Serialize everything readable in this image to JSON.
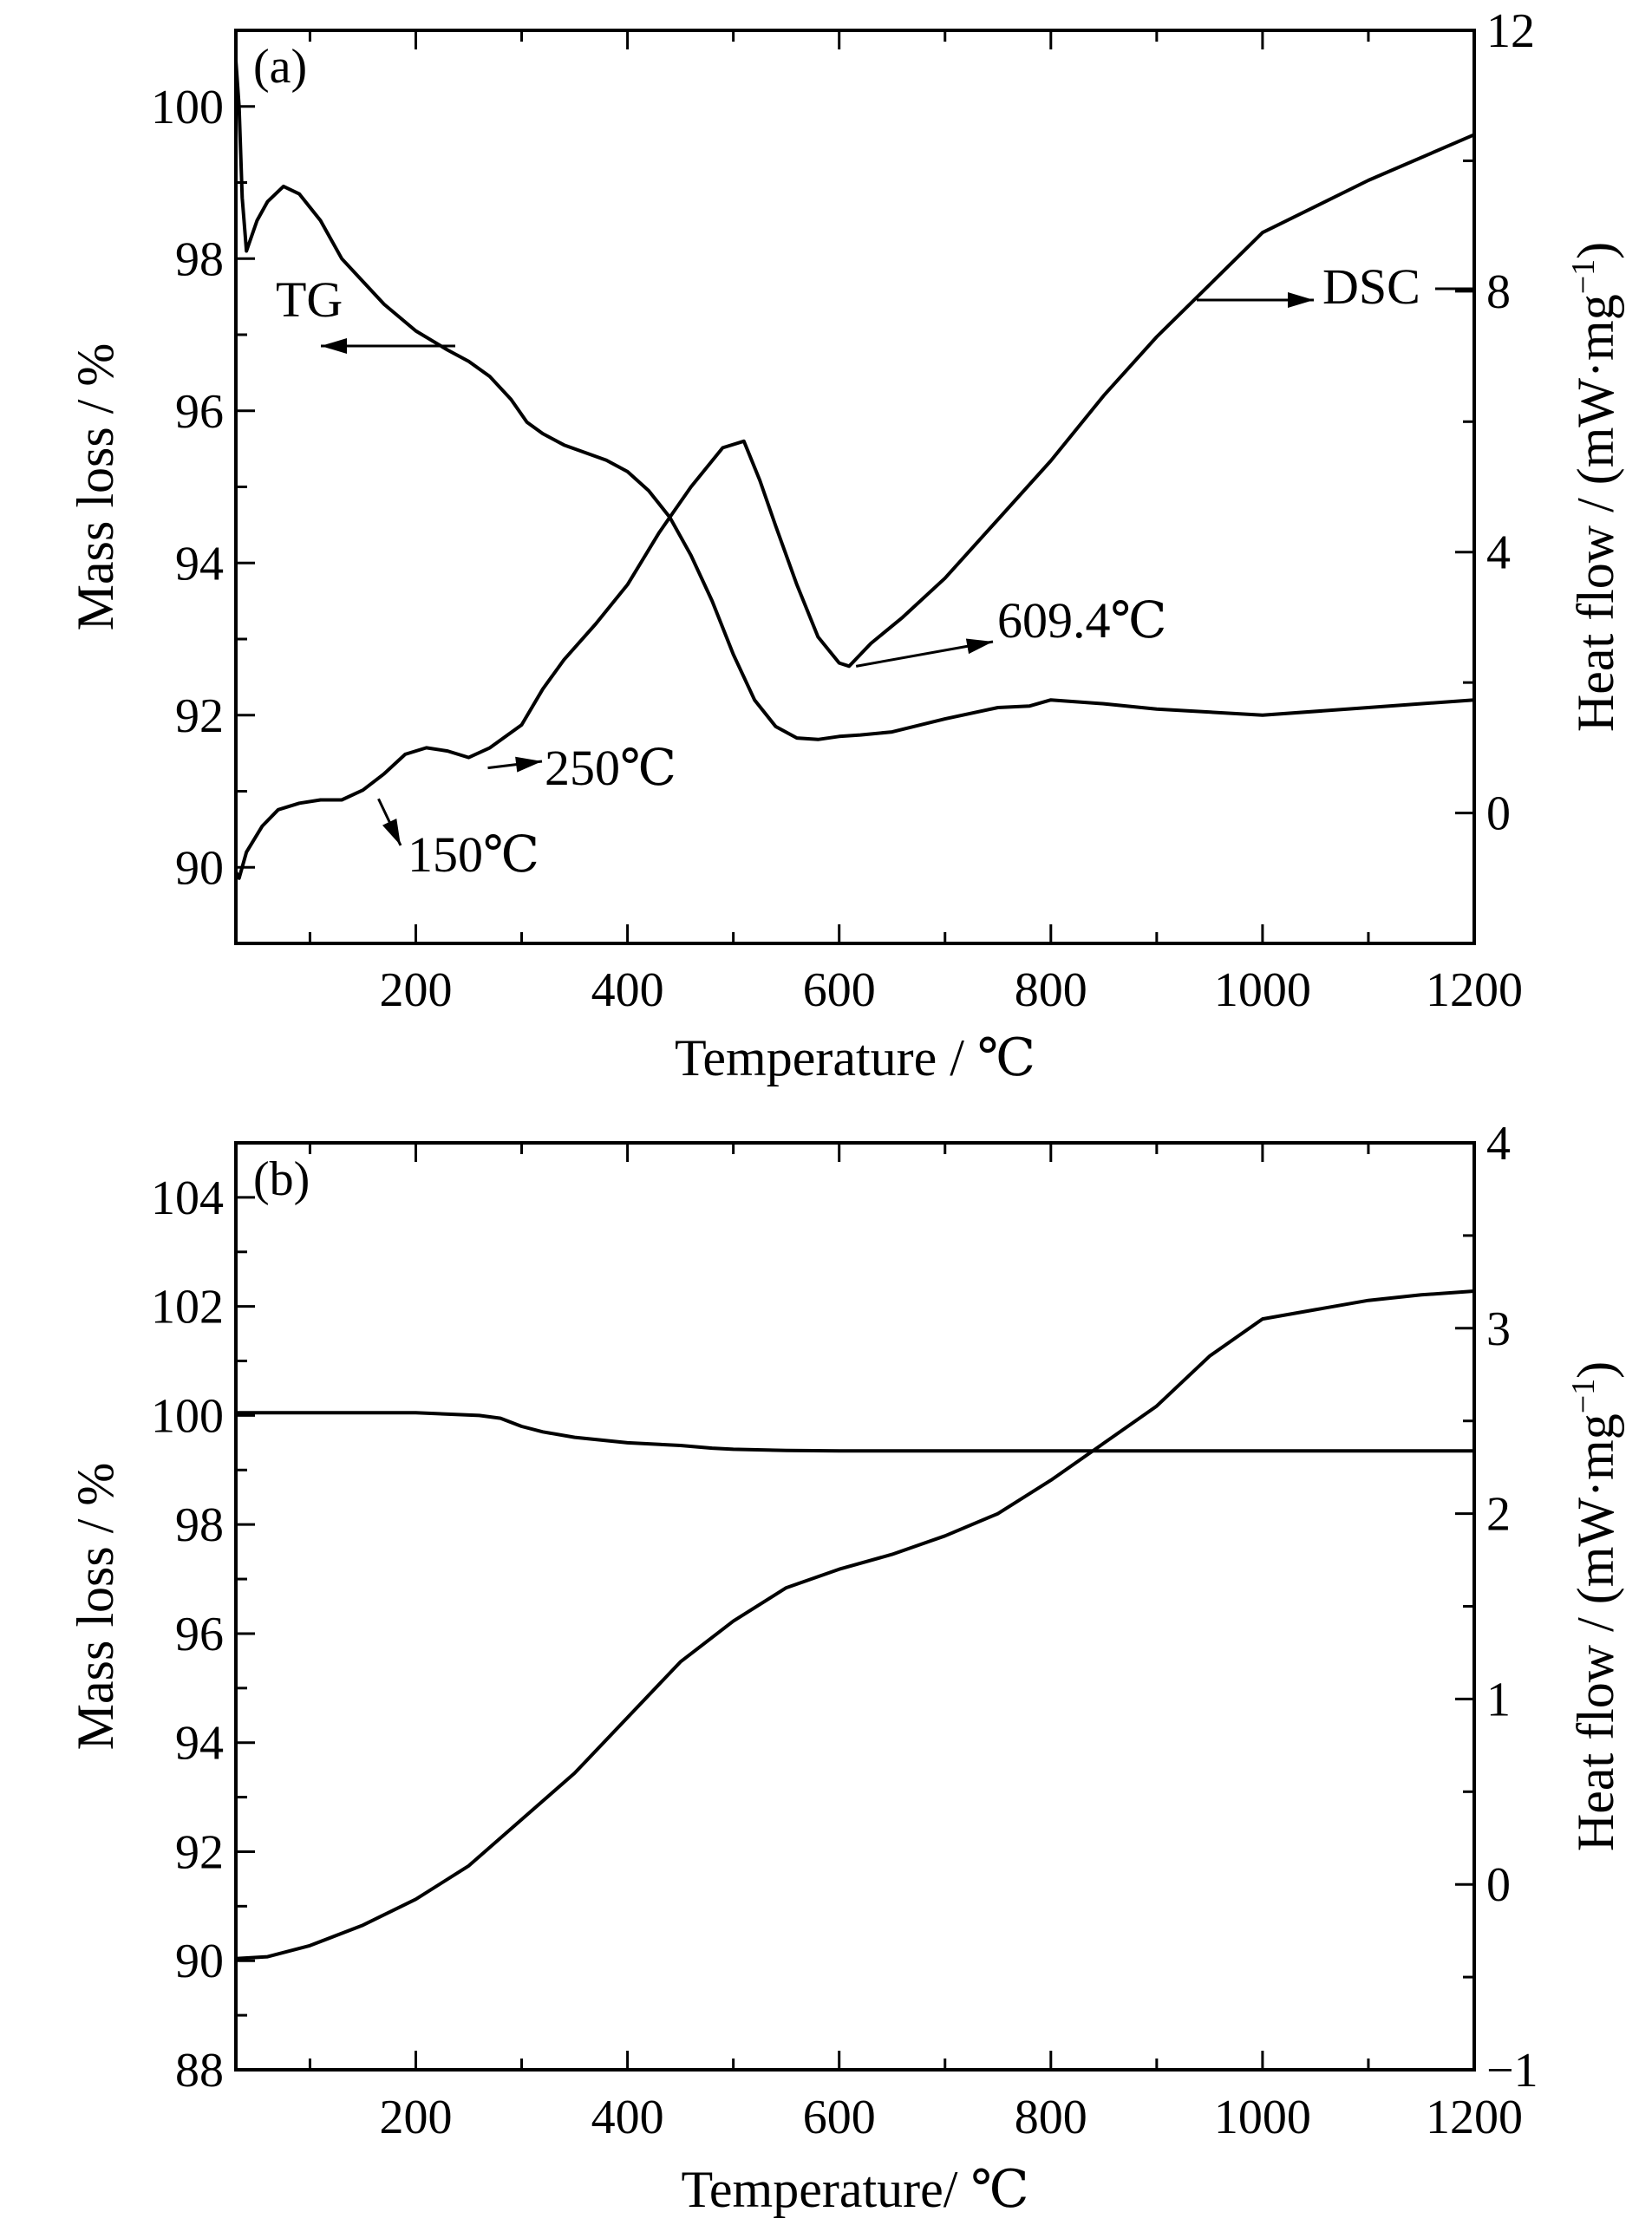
{
  "chart_data": [
    {
      "type": "line",
      "panel_label": "(a)",
      "xlabel": "Temperature / ℃",
      "ylabel_left": "Mass loss / %",
      "ylabel_right": "Heat flow / (mW·mg",
      "ylabel_right_sup": "−1",
      "ylabel_right_end": ")",
      "xlim": [
        30,
        1200
      ],
      "ylim_left": [
        89,
        101
      ],
      "ylim_right": [
        -2,
        12
      ],
      "xticks": [
        200,
        400,
        600,
        800,
        1000,
        1200
      ],
      "xticks_minor": [
        100,
        300,
        500,
        700,
        900,
        1100
      ],
      "yticks_left": [
        90,
        92,
        94,
        96,
        98,
        100
      ],
      "yticks_left_minor": [
        91,
        93,
        95,
        97,
        99
      ],
      "yticks_right": [
        0,
        4,
        8,
        12
      ],
      "yticks_right_minor": [
        2,
        6,
        10
      ],
      "series": [
        {
          "name": "TG",
          "axis": "left",
          "x": [
            30,
            33,
            36,
            40,
            50,
            60,
            75,
            90,
            110,
            130,
            150,
            170,
            200,
            230,
            250,
            270,
            290,
            305,
            320,
            340,
            360,
            380,
            400,
            420,
            440,
            460,
            480,
            500,
            520,
            540,
            560,
            580,
            600,
            620,
            650,
            700,
            750,
            780,
            800,
            850,
            900,
            1000,
            1100,
            1200
          ],
          "y": [
            100.6,
            100.0,
            98.8,
            98.1,
            98.5,
            98.75,
            98.95,
            98.85,
            98.5,
            98.0,
            97.7,
            97.4,
            97.05,
            96.8,
            96.65,
            96.45,
            96.15,
            95.85,
            95.7,
            95.55,
            95.45,
            95.35,
            95.2,
            94.95,
            94.6,
            94.1,
            93.5,
            92.8,
            92.2,
            91.85,
            91.7,
            91.68,
            91.72,
            91.74,
            91.78,
            91.95,
            92.1,
            92.12,
            92.2,
            92.15,
            92.08,
            92.0,
            92.1,
            92.2
          ]
        },
        {
          "name": "DSC",
          "axis": "right",
          "x": [
            30,
            33,
            40,
            55,
            70,
            90,
            110,
            130,
            150,
            170,
            190,
            210,
            230,
            250,
            270,
            300,
            320,
            340,
            370,
            400,
            430,
            460,
            490,
            510,
            525,
            540,
            560,
            580,
            600,
            609.4,
            630,
            660,
            700,
            750,
            800,
            850,
            900,
            950,
            1000,
            1100,
            1200
          ],
          "y": [
            -0.9,
            -1.0,
            -0.6,
            -0.2,
            0.05,
            0.15,
            0.2,
            0.2,
            0.35,
            0.6,
            0.9,
            1.0,
            0.95,
            0.85,
            1.0,
            1.35,
            1.9,
            2.35,
            2.9,
            3.5,
            4.3,
            5.0,
            5.6,
            5.7,
            5.1,
            4.4,
            3.5,
            2.7,
            2.3,
            2.25,
            2.6,
            3.0,
            3.6,
            4.5,
            5.4,
            6.4,
            7.3,
            8.1,
            8.9,
            9.7,
            10.4
          ]
        }
      ],
      "annotations": [
        {
          "text": "TG",
          "points_to": "left"
        },
        {
          "text": "DSC",
          "points_to": "right"
        },
        {
          "text": "150℃",
          "at": [
            150,
            0.35
          ]
        },
        {
          "text": "250℃",
          "at": [
            250,
            0.85
          ]
        },
        {
          "text": "609.4℃",
          "at": [
            609.4,
            2.25
          ]
        }
      ]
    },
    {
      "type": "line",
      "panel_label": "(b)",
      "xlabel": "Temperature/ ℃",
      "ylabel_left": "Mass loss / %",
      "ylabel_right": "Heat flow / (mW·mg",
      "ylabel_right_sup": "−1",
      "ylabel_right_end": ")",
      "xlim": [
        30,
        1200
      ],
      "ylim_left": [
        88,
        105
      ],
      "ylim_right": [
        -1,
        4
      ],
      "xticks": [
        200,
        400,
        600,
        800,
        1000,
        1200
      ],
      "xticks_minor": [
        100,
        300,
        500,
        700,
        900,
        1100
      ],
      "yticks_left": [
        88,
        90,
        92,
        94,
        96,
        98,
        100,
        102,
        104
      ],
      "yticks_left_minor": [
        89,
        91,
        93,
        95,
        97,
        99,
        101,
        103
      ],
      "yticks_right": [
        -1,
        0,
        1,
        2,
        3,
        4
      ],
      "yticks_right_minor": [
        -0.5,
        0.5,
        1.5,
        2.5,
        3.5
      ],
      "series": [
        {
          "name": "",
          "axis": "left",
          "x": [
            30,
            100,
            200,
            260,
            280,
            300,
            320,
            350,
            400,
            450,
            480,
            500,
            550,
            600,
            700,
            800,
            900,
            1000,
            1100,
            1200
          ],
          "y": [
            100.05,
            100.05,
            100.05,
            100.0,
            99.95,
            99.8,
            99.7,
            99.6,
            99.5,
            99.45,
            99.4,
            99.38,
            99.36,
            99.35,
            99.35,
            99.35,
            99.35,
            99.35,
            99.35,
            99.35
          ]
        },
        {
          "name": "",
          "axis": "right",
          "x": [
            30,
            60,
            100,
            150,
            200,
            250,
            300,
            350,
            400,
            450,
            500,
            550,
            600,
            650,
            700,
            750,
            800,
            850,
            900,
            950,
            1000,
            1050,
            1100,
            1150,
            1200
          ],
          "y": [
            -0.4,
            -0.39,
            -0.33,
            -0.22,
            -0.08,
            0.1,
            0.35,
            0.6,
            0.9,
            1.2,
            1.42,
            1.6,
            1.7,
            1.78,
            1.88,
            2.0,
            2.18,
            2.38,
            2.58,
            2.85,
            3.05,
            3.1,
            3.15,
            3.18,
            3.2
          ]
        }
      ],
      "annotations": []
    }
  ]
}
